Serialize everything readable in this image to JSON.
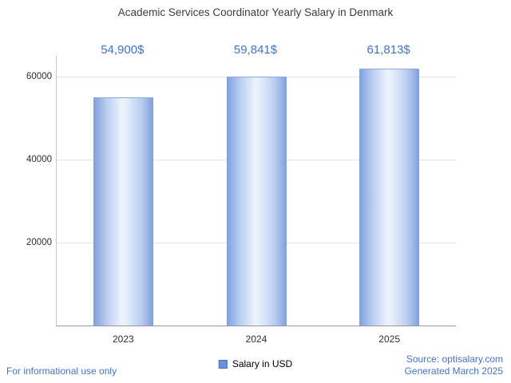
{
  "chart_data": {
    "type": "bar",
    "title": "Academic Services Coordinator Yearly Salary in Denmark",
    "categories": [
      "2023",
      "2024",
      "2025"
    ],
    "values": [
      54900,
      59841,
      61813
    ],
    "value_labels": [
      "54,900$",
      "59,841$",
      "61,813$"
    ],
    "xlabel": "",
    "ylabel": "",
    "ylim": [
      0,
      65000
    ],
    "yticks": [
      20000,
      40000,
      60000
    ],
    "ytick_labels": [
      "20000",
      "40000",
      "60000"
    ],
    "grid": true,
    "legend": {
      "label": "Salary in USD",
      "position": "bottom-center"
    }
  },
  "footer": {
    "left": "For informational use only",
    "source": "Source: optisalary.com",
    "generated": "Generated March 2025"
  },
  "colors": {
    "accent": "#4472c4",
    "bar_edge": "#7f9fdd",
    "bar_center": "#eef4fd",
    "gridline": "#e3e3e3",
    "title_text": "#3d3d3d"
  }
}
